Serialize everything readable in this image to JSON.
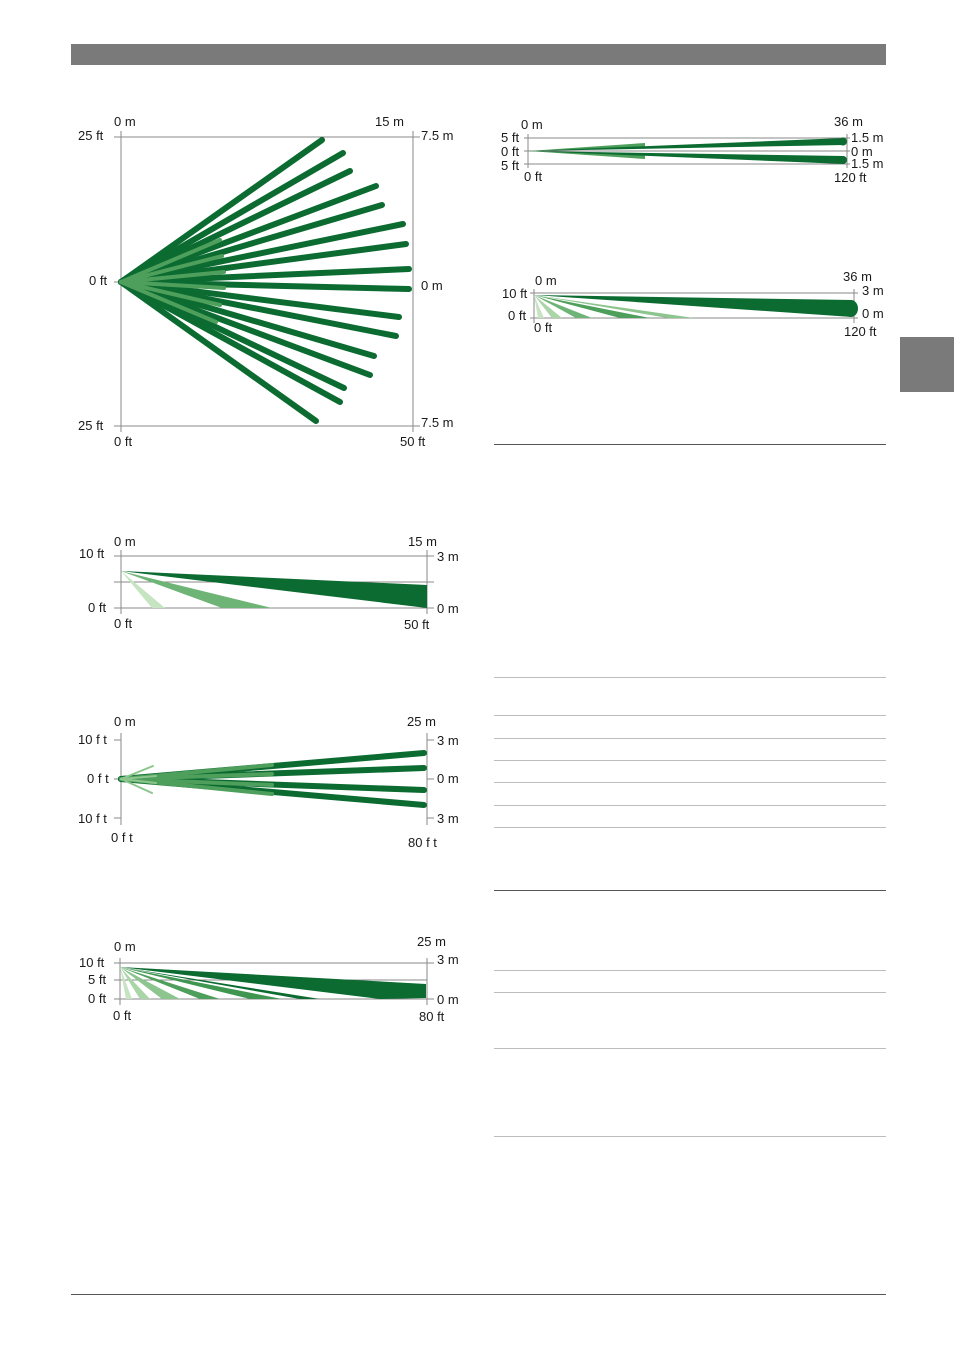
{
  "colors": {
    "dark": "#0b6b30",
    "mid": "#4f9f5c",
    "light": "#8cc58e",
    "pale": "#c6e4c2",
    "frame": "#8a8a8a",
    "header": "#7a7a7a"
  },
  "diagrams": {
    "wide_top": {
      "top_left": "0 m",
      "top_right": "15 m",
      "left_top": "25 ft",
      "left_mid": "0 ft",
      "left_bottom": "25 ft",
      "right_top": "7.5 m",
      "right_mid": "0 m",
      "right_bottom": "7.5 m",
      "bottom_left": "0 ft",
      "bottom_right": "50 ft"
    },
    "wide_side": {
      "top_left": "0 m",
      "top_right": "15 m",
      "left_top": "10 ft",
      "left_bottom": "0 ft",
      "right_top": "3 m",
      "right_bottom": "0 m",
      "bottom_left": "0 ft",
      "bottom_right": "50 ft"
    },
    "mid_top": {
      "top_left": "0 m",
      "top_right": "25 m",
      "left_top": "10 f t",
      "left_mid": "0 f t",
      "left_bottom": "10 f t",
      "right_top": "3 m",
      "right_mid": "0 m",
      "right_bottom": "3 m",
      "bottom_left": "0 f t",
      "bottom_right": "80 f t"
    },
    "mid_side": {
      "top_left": "0 m",
      "top_right": "25 m",
      "left_top": "10 ft",
      "left_mid": "5 ft",
      "left_bottom": "0 ft",
      "right_top": "3 m",
      "right_bottom": "0 m",
      "bottom_left": "0 ft",
      "bottom_right": "80 ft"
    },
    "long_top": {
      "top_left": "0 m",
      "top_right": "36 m",
      "left_top": "5 ft",
      "left_mid": "0 ft",
      "left_bottom": "5 ft",
      "right_top": "1.5 m",
      "right_mid": "0 m",
      "right_bottom": "1.5 m",
      "bottom_left": "0 ft",
      "bottom_right": "120 ft"
    },
    "long_side": {
      "top_left": "0 m",
      "top_right": "36 m",
      "left_top": "10 ft",
      "left_bottom": "0 ft",
      "right_top": "3 m",
      "right_bottom": "0 m",
      "bottom_left": "0 ft",
      "bottom_right": "120 ft"
    }
  }
}
